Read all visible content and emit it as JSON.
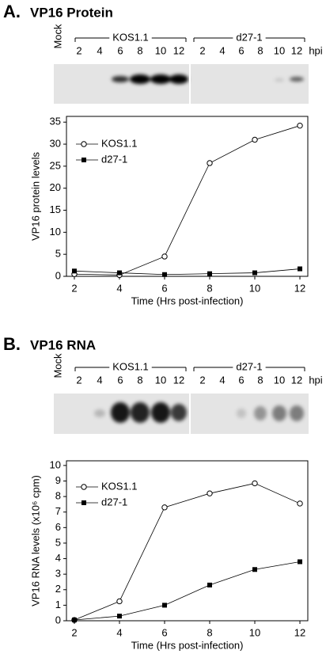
{
  "blots": [
    {
      "mock": "Mock",
      "groups": [
        {
          "name": "KOS1.1",
          "lanes": [
            "2",
            "4",
            "6",
            "8",
            "10",
            "12"
          ]
        },
        {
          "name": "d27-1",
          "lanes": [
            "2",
            "4",
            "6",
            "8",
            "10",
            "12"
          ]
        }
      ],
      "unit": "hpi"
    },
    {
      "mock": "Mock",
      "groups": [
        {
          "name": "KOS1.1",
          "lanes": [
            "2",
            "4",
            "6",
            "8",
            "10",
            "12"
          ]
        },
        {
          "name": "d27-1",
          "lanes": [
            "2",
            "4",
            "6",
            "8",
            "10",
            "12"
          ]
        }
      ],
      "unit": "hpi"
    }
  ],
  "chart_data": [
    {
      "type": "line",
      "label": "A.",
      "title": "VP16 Protein",
      "xlabel": "Time (Hrs post-infection)",
      "ylabel": "VP16 protein levels",
      "x": [
        2,
        4,
        6,
        8,
        10,
        12
      ],
      "series": [
        {
          "name": "KOS1.1",
          "color": "#000000",
          "marker": "open-circle",
          "values": [
            0.5,
            0.3,
            4.5,
            25.7,
            31,
            34.2
          ]
        },
        {
          "name": "d27-1",
          "color": "#000000",
          "marker": "filled-square",
          "values": [
            1.2,
            0.8,
            0.4,
            0.6,
            0.8,
            1.7
          ]
        }
      ],
      "xlim": [
        1.65,
        12.35
      ],
      "xticks": [
        2,
        4,
        6,
        8,
        10,
        12
      ],
      "ylim": [
        0,
        36.3
      ],
      "yticks": [
        0,
        5,
        10,
        15,
        20,
        25,
        30,
        35
      ],
      "legend": "upper left"
    },
    {
      "type": "line",
      "label": "B.",
      "title": "VP16 RNA",
      "xlabel": "Time (Hrs post-infection)",
      "ylabel": "VP16 RNA levels (x10⁶ cpm)",
      "x": [
        2,
        4,
        6,
        8,
        10,
        12
      ],
      "series": [
        {
          "name": "KOS1.1",
          "color": "#000000",
          "marker": "open-circle",
          "values": [
            0.05,
            1.25,
            7.3,
            8.2,
            8.85,
            7.55
          ]
        },
        {
          "name": "d27-1",
          "color": "#000000",
          "marker": "filled-square",
          "values": [
            0.05,
            0.3,
            1.0,
            2.3,
            3.3,
            3.8
          ]
        }
      ],
      "xlim": [
        1.65,
        12.35
      ],
      "xticks": [
        2,
        4,
        6,
        8,
        10,
        12
      ],
      "ylim": [
        0,
        10.3
      ],
      "yticks": [
        0,
        1,
        2,
        3,
        4,
        5,
        6,
        7,
        8,
        9,
        10
      ],
      "legend": "upper left"
    }
  ]
}
